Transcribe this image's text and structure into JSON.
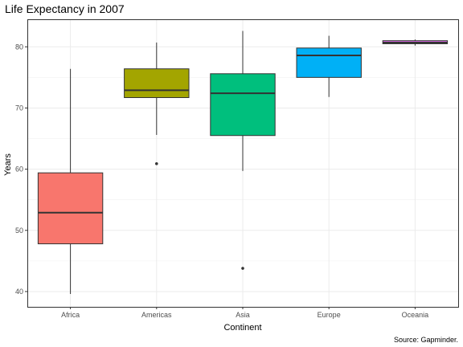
{
  "chart_data": {
    "type": "box",
    "title": "Life Expectancy in 2007",
    "xlabel": "Continent",
    "ylabel": "Years",
    "caption": "Source: Gapminder.",
    "ylim": [
      37.5,
      84.5
    ],
    "yticks": [
      40,
      50,
      60,
      70,
      80
    ],
    "grid": true,
    "legend": "none",
    "categories": [
      "Africa",
      "Americas",
      "Asia",
      "Europe",
      "Oceania"
    ],
    "boxes": [
      {
        "category": "Africa",
        "min": 39.6,
        "q1": 47.8,
        "median": 52.9,
        "q3": 59.4,
        "max": 76.4,
        "outliers": [],
        "color": "#F8766D"
      },
      {
        "category": "Americas",
        "min": 65.6,
        "q1": 71.7,
        "median": 72.9,
        "q3": 76.4,
        "max": 80.7,
        "outliers": [
          60.9
        ],
        "color": "#A3A500"
      },
      {
        "category": "Asia",
        "min": 59.7,
        "q1": 65.5,
        "median": 72.4,
        "q3": 75.6,
        "max": 82.6,
        "outliers": [
          43.8
        ],
        "color": "#00BF7D"
      },
      {
        "category": "Europe",
        "min": 71.8,
        "q1": 75.0,
        "median": 78.6,
        "q3": 79.8,
        "max": 81.8,
        "outliers": [],
        "color": "#00B0F6"
      },
      {
        "category": "Oceania",
        "min": 80.2,
        "q1": 80.5,
        "median": 80.7,
        "q3": 81.0,
        "max": 81.2,
        "outliers": [],
        "color": "#E76BF3"
      }
    ]
  }
}
